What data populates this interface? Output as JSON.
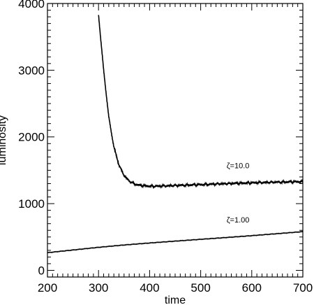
{
  "chart_data": {
    "type": "line",
    "xlabel": "time",
    "ylabel": "luminosity",
    "xlim": [
      200,
      700
    ],
    "ylim": [
      -100,
      4000
    ],
    "grid": false,
    "x_ticks": [
      200,
      300,
      400,
      500,
      600,
      700
    ],
    "y_ticks": [
      0,
      1000,
      2000,
      3000,
      4000
    ],
    "x_tick_labels": [
      "200",
      "300",
      "400",
      "500",
      "600",
      "700"
    ],
    "y_tick_labels": [
      "0",
      "1000",
      "2000",
      "3000",
      "4000"
    ],
    "series": [
      {
        "name": "ζ=10.0",
        "color": "#000000",
        "x": [
          300,
          310,
          320,
          330,
          340,
          350,
          360,
          370,
          380,
          400,
          420,
          450,
          500,
          550,
          600,
          650,
          700
        ],
        "y": [
          3830,
          3000,
          2300,
          1850,
          1580,
          1420,
          1340,
          1295,
          1275,
          1262,
          1262,
          1272,
          1285,
          1300,
          1312,
          1322,
          1330
        ]
      },
      {
        "name": "ζ=1.00",
        "color": "#000000",
        "x": [
          200,
          250,
          300,
          350,
          400,
          450,
          500,
          550,
          600,
          650,
          700
        ],
        "y": [
          265,
          305,
          345,
          380,
          410,
          438,
          465,
          492,
          520,
          550,
          580
        ]
      }
    ],
    "annotations": [
      {
        "text": "ζ=10.0",
        "x": 573,
        "y": 1530
      },
      {
        "text": "ζ=1.00",
        "x": 573,
        "y": 720
      }
    ]
  }
}
